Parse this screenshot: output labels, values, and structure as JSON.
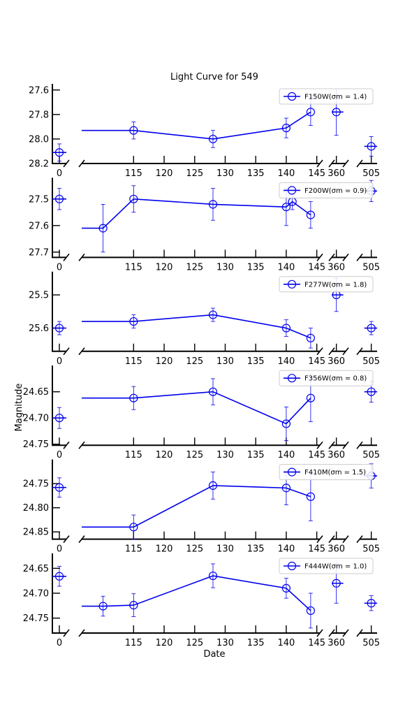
{
  "figure": {
    "title": "Light Curve for 549",
    "xlabel": "Date",
    "ylabel": "Magnitude"
  },
  "colors": {
    "series": "#0000ee",
    "axis": "#000000",
    "legend_border": "#cccccc"
  },
  "chart_data": {
    "type": "line",
    "title": "Light Curve for 549",
    "xlabel": "Date",
    "ylabel": "Magnitude",
    "x_segments": [
      {
        "range": [
          -1,
          1
        ],
        "ticks": [
          0
        ]
      },
      {
        "range": [
          106.5,
          145.5
        ],
        "ticks": [
          115,
          120,
          125,
          130,
          135,
          140,
          145
        ]
      },
      {
        "range": [
          359.5,
          361
        ],
        "ticks": [
          360
        ]
      },
      {
        "range": [
          504,
          505.5
        ],
        "ticks": [
          505
        ]
      }
    ],
    "grid": false,
    "legend_position": "upper-right",
    "panels": [
      {
        "label": "F150W(σm = 1.4)",
        "ylim": [
          28.2,
          27.55
        ],
        "yticks": [
          27.6,
          27.8,
          28.0,
          28.2
        ],
        "ytick_labels": [
          "27.6",
          "27.8",
          "28.0",
          "28.2"
        ],
        "points": [
          {
            "x": 0,
            "y": 28.11,
            "err": 0.07
          },
          {
            "x": 115,
            "y": 27.93,
            "err": 0.07
          },
          {
            "x": 128,
            "y": 28.0,
            "err": 0.07
          },
          {
            "x": 140,
            "y": 27.91,
            "err": 0.08
          },
          {
            "x": 144,
            "y": 27.78,
            "err": 0.11
          },
          {
            "x": 360,
            "y": 27.78,
            "err": 0.19
          },
          {
            "x": 505,
            "y": 28.06,
            "err": 0.08
          }
        ]
      },
      {
        "label": "F200W(σm = 0.9)",
        "ylim": [
          27.72,
          27.42
        ],
        "yticks": [
          27.5,
          27.6,
          27.7
        ],
        "ytick_labels": [
          "27.5",
          "27.6",
          "27.7"
        ],
        "points": [
          {
            "x": 0,
            "y": 27.5,
            "err": 0.04
          },
          {
            "x": 110,
            "y": 27.61,
            "err": 0.09
          },
          {
            "x": 115,
            "y": 27.5,
            "err": 0.05
          },
          {
            "x": 128,
            "y": 27.52,
            "err": 0.06
          },
          {
            "x": 140,
            "y": 27.53,
            "err": 0.07
          },
          {
            "x": 141,
            "y": 27.51,
            "err": 0.03
          },
          {
            "x": 144,
            "y": 27.56,
            "err": 0.05
          },
          {
            "x": 505,
            "y": 27.47,
            "err": 0.04
          }
        ]
      },
      {
        "label": "F277W(σm = 1.8)",
        "ylim": [
          25.67,
          25.43
        ],
        "yticks": [
          25.5,
          25.6
        ],
        "ytick_labels": [
          "25.5",
          "25.6"
        ],
        "points": [
          {
            "x": 0,
            "y": 25.6,
            "err": 0.02
          },
          {
            "x": 115,
            "y": 25.58,
            "err": 0.02
          },
          {
            "x": 128,
            "y": 25.56,
            "err": 0.02
          },
          {
            "x": 140,
            "y": 25.6,
            "err": 0.025
          },
          {
            "x": 144,
            "y": 25.63,
            "err": 0.03
          },
          {
            "x": 360,
            "y": 25.5,
            "err": 0.05
          },
          {
            "x": 505,
            "y": 25.6,
            "err": 0.02
          }
        ]
      },
      {
        "label": "F356W(σm = 0.8)",
        "ylim": [
          24.752,
          24.6
        ],
        "yticks": [
          24.65,
          24.7,
          24.75
        ],
        "ytick_labels": [
          "24.65",
          "24.70",
          "24.75"
        ],
        "points": [
          {
            "x": 0,
            "y": 24.7,
            "err": 0.02
          },
          {
            "x": 115,
            "y": 24.662,
            "err": 0.022
          },
          {
            "x": 128,
            "y": 24.65,
            "err": 0.025
          },
          {
            "x": 140,
            "y": 24.711,
            "err": 0.032
          },
          {
            "x": 144,
            "y": 24.662,
            "err": 0.045
          },
          {
            "x": 505,
            "y": 24.65,
            "err": 0.02
          }
        ]
      },
      {
        "label": "F410M(σm = 1.5)",
        "ylim": [
          24.865,
          24.7
        ],
        "yticks": [
          24.75,
          24.8,
          24.85
        ],
        "ytick_labels": [
          "24.75",
          "24.80",
          "24.85"
        ],
        "points": [
          {
            "x": 0,
            "y": 24.758,
            "err": 0.02
          },
          {
            "x": 115,
            "y": 24.84,
            "err": 0.025
          },
          {
            "x": 128,
            "y": 24.754,
            "err": 0.028
          },
          {
            "x": 140,
            "y": 24.759,
            "err": 0.035
          },
          {
            "x": 144,
            "y": 24.777,
            "err": 0.05
          },
          {
            "x": 505,
            "y": 24.734,
            "err": 0.025
          }
        ]
      },
      {
        "label": "F444W(σm = 1.0)",
        "ylim": [
          24.78,
          24.62
        ],
        "yticks": [
          24.65,
          24.7,
          24.75
        ],
        "ytick_labels": [
          "24.65",
          "24.70",
          "24.75"
        ],
        "points": [
          {
            "x": 0,
            "y": 24.666,
            "err": 0.02
          },
          {
            "x": 110,
            "y": 24.726,
            "err": 0.02
          },
          {
            "x": 115,
            "y": 24.724,
            "err": 0.023
          },
          {
            "x": 128,
            "y": 24.665,
            "err": 0.024
          },
          {
            "x": 140,
            "y": 24.69,
            "err": 0.02
          },
          {
            "x": 144,
            "y": 24.735,
            "err": 0.035
          },
          {
            "x": 360,
            "y": 24.68,
            "err": 0.04
          },
          {
            "x": 505,
            "y": 24.72,
            "err": 0.015
          }
        ]
      }
    ]
  }
}
